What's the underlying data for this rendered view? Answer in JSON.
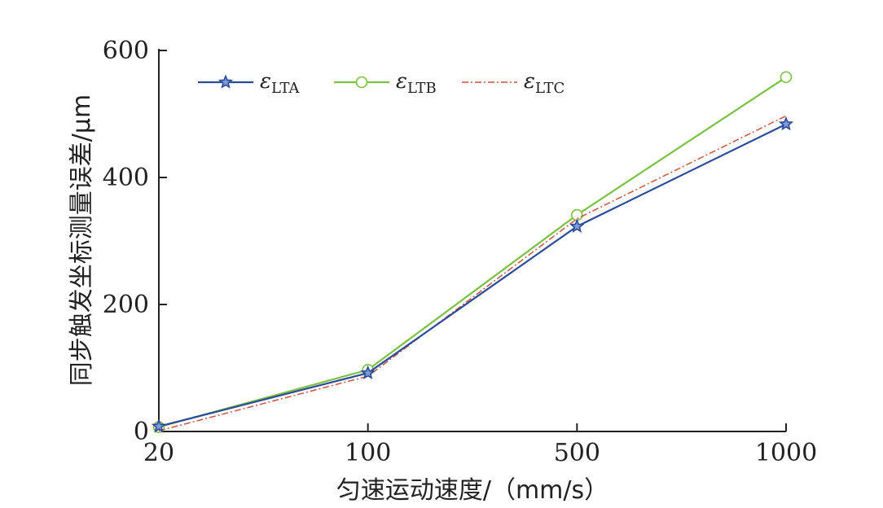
{
  "chart_data": {
    "type": "line",
    "categories": [
      "20",
      "100",
      "500",
      "1000"
    ],
    "xlabel": "匀速运动速度/（mm/s）",
    "ylabel": "同步触发坐标测量误差/μm",
    "ylim": [
      0,
      600
    ],
    "yticks": [
      "0",
      "200",
      "400",
      "600"
    ],
    "grid": false,
    "legend_position": "top",
    "series": [
      {
        "name_symbol": "ε",
        "name_subscript": "LTA",
        "values": [
          8,
          92,
          323,
          484
        ],
        "color": "#2b4a9a",
        "marker": "star",
        "dash": "solid"
      },
      {
        "name_symbol": "ε",
        "name_subscript": "LTB",
        "values": [
          7,
          97,
          341,
          558
        ],
        "color": "#7ac143",
        "marker": "circle",
        "dash": "solid"
      },
      {
        "name_symbol": "ε",
        "name_subscript": "LTC",
        "values": [
          1,
          87,
          335,
          497
        ],
        "color": "#c8553d",
        "marker": "none",
        "dash": "dashdot"
      }
    ]
  }
}
